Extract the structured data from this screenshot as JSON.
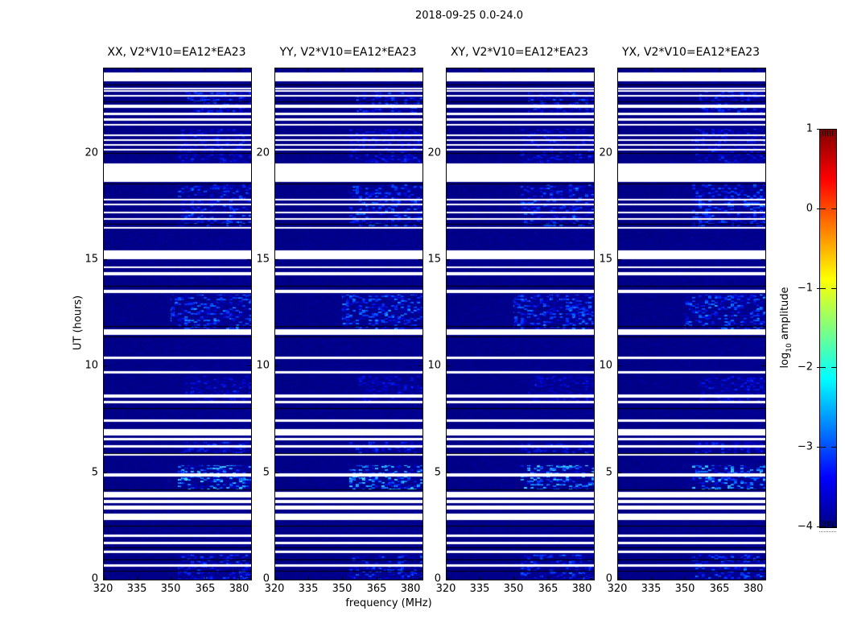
{
  "figure": {
    "suptitle": "2018-09-25 0.0-24.0",
    "background_color": "#ffffff"
  },
  "chart_data": {
    "type": "heatmap",
    "description": "Dynamic spectra (time vs frequency) of visibility amplitudes for four polarization products of baseline V2*V10=EA12*EA23; deep navy background near log10 amplitude -4 with sparse brighter blue noise and horizontal white bands marking missing time ranges.",
    "panels": [
      {
        "title": "XX, V2*V10=EA12*EA23"
      },
      {
        "title": "YY, V2*V10=EA12*EA23"
      },
      {
        "title": "XY, V2*V10=EA12*EA23"
      },
      {
        "title": "YX, V2*V10=EA12*EA23"
      }
    ],
    "xlabel": "frequency (MHz)",
    "ylabel": "UT (hours)",
    "x_ticks": [
      320,
      335,
      350,
      365,
      380
    ],
    "y_ticks": [
      0,
      5,
      10,
      15,
      20
    ],
    "x_range": [
      320,
      385
    ],
    "y_range": [
      0,
      24
    ],
    "colormap": "jet",
    "colormap_stops": [
      {
        "pos": 0.0,
        "color": "#000083"
      },
      {
        "pos": 0.125,
        "color": "#0000ff"
      },
      {
        "pos": 0.375,
        "color": "#00ffff"
      },
      {
        "pos": 0.625,
        "color": "#ffff00"
      },
      {
        "pos": 0.875,
        "color": "#ff0000"
      },
      {
        "pos": 1.0,
        "color": "#800000"
      }
    ],
    "base_color": "#000082",
    "gap_color": "#ffffff",
    "line_color": "#000000",
    "colorbar": {
      "label_pre": "log",
      "label_sub": "10",
      "label_post": " amplitude",
      "ticks": [
        1,
        0,
        -1,
        -2,
        -3,
        -4
      ],
      "range": [
        -4,
        1
      ]
    },
    "missing_time_intervals_ut": [
      [
        23.4,
        23.81
      ],
      [
        23.02,
        23.09
      ],
      [
        22.92,
        22.98
      ],
      [
        22.68,
        22.75
      ],
      [
        22.15,
        22.3
      ],
      [
        21.81,
        21.92
      ],
      [
        21.54,
        21.66
      ],
      [
        21.32,
        21.39
      ],
      [
        20.82,
        20.9
      ],
      [
        20.6,
        20.67
      ],
      [
        20.37,
        20.45
      ],
      [
        20.15,
        20.22
      ],
      [
        18.67,
        19.54
      ],
      [
        17.8,
        17.88
      ],
      [
        17.58,
        17.65
      ],
      [
        17.2,
        17.27
      ],
      [
        16.89,
        16.97
      ],
      [
        16.48,
        16.56
      ],
      [
        15.04,
        15.46
      ],
      [
        14.63,
        14.7
      ],
      [
        14.3,
        14.45
      ],
      [
        13.44,
        13.59
      ],
      [
        11.49,
        11.74
      ],
      [
        10.36,
        10.48
      ],
      [
        9.66,
        9.79
      ],
      [
        8.53,
        8.68
      ],
      [
        8.28,
        8.4
      ],
      [
        7.39,
        7.52
      ],
      [
        6.77,
        7.08
      ],
      [
        6.51,
        6.64
      ],
      [
        6.2,
        6.32
      ],
      [
        5.79,
        5.88
      ],
      [
        4.84,
        4.99
      ],
      [
        3.87,
        4.12
      ],
      [
        3.59,
        3.74
      ],
      [
        3.3,
        3.49
      ],
      [
        2.8,
        3.09
      ],
      [
        1.98,
        2.1
      ],
      [
        1.66,
        1.79
      ],
      [
        1.22,
        1.35
      ],
      [
        0.59,
        0.72
      ]
    ],
    "black_line_times_ut": [
      23.25,
      22.45,
      20.05,
      18.6,
      16.7,
      13.8,
      11.9,
      11.42,
      8.05,
      5.95,
      4.25,
      2.55,
      1.5,
      0.95,
      0.4
    ],
    "enhanced_noise_regions": [
      {
        "ut": [
          4.2,
          5.4
        ],
        "freq_frac": [
          0.5,
          1.0
        ],
        "strength": 0.55
      },
      {
        "ut": [
          11.7,
          13.4
        ],
        "freq_frac": [
          0.45,
          1.0
        ],
        "strength": 0.38
      },
      {
        "ut": [
          16.6,
          18.6
        ],
        "freq_frac": [
          0.5,
          1.0
        ],
        "strength": 0.32
      },
      {
        "ut": [
          21.9,
          23.0
        ],
        "freq_frac": [
          0.55,
          1.0
        ],
        "strength": 0.3
      },
      {
        "ut": [
          19.6,
          21.2
        ],
        "freq_frac": [
          0.5,
          1.0
        ],
        "strength": 0.22
      },
      {
        "ut": [
          8.4,
          9.6
        ],
        "freq_frac": [
          0.55,
          1.0
        ],
        "strength": 0.2
      },
      {
        "ut": [
          0.0,
          1.2
        ],
        "freq_frac": [
          0.5,
          1.0
        ],
        "strength": 0.3
      },
      {
        "ut": [
          5.9,
          6.5
        ],
        "freq_frac": [
          0.5,
          1.0
        ],
        "strength": 0.25
      }
    ]
  }
}
